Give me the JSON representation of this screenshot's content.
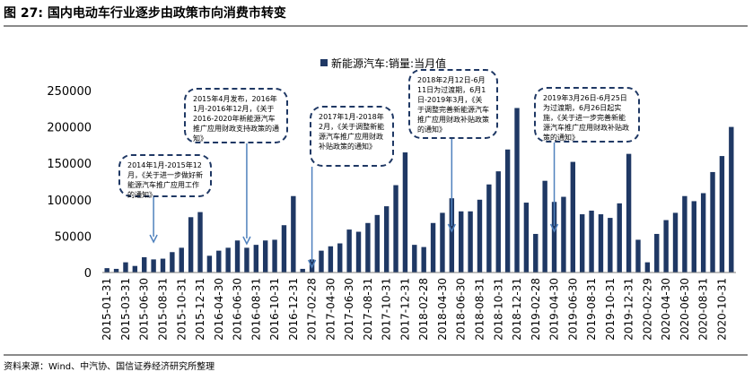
{
  "figure": {
    "title": "图 27: 国内电动车行业逐步由政策市向消费市转变",
    "source": "资料来源：Wind、中汽协、国信证券经济研究所整理"
  },
  "chart_data": {
    "type": "bar",
    "legend": {
      "label": "新能源汽车:销量:当月值",
      "position": "top"
    },
    "ylim": [
      0,
      250000
    ],
    "yticks": [
      "0",
      "50000",
      "100000",
      "150000",
      "200000",
      "250000"
    ],
    "bar_color": "#1f3864",
    "x_tick_labels": [
      "2015-01-31",
      "2015-03-31",
      "2015-06-30",
      "2015-08-31",
      "2015-10-31",
      "2015-12-31",
      "2016-04-30",
      "2016-06-30",
      "2016-08-31",
      "2016-10-31",
      "2016-12-31",
      "2017-02-28",
      "2017-04-30",
      "2017-06-30",
      "2017-08-31",
      "2017-10-31",
      "2017-12-31",
      "2018-02-28",
      "2018-04-30",
      "2018-06-30",
      "2018-08-31",
      "2018-10-31",
      "2018-12-31",
      "2019-02-28",
      "2019-04-30",
      "2019-06-30",
      "2019-08-31",
      "2019-10-31",
      "2019-12-31",
      "2020-02-29",
      "2020-04-30",
      "2020-06-30",
      "2020-08-31",
      "2020-10-31"
    ],
    "values": [
      6000,
      5000,
      14000,
      9000,
      21000,
      18000,
      19000,
      28000,
      34000,
      76000,
      83000,
      23000,
      30000,
      34000,
      44000,
      34000,
      38000,
      44000,
      45000,
      65000,
      105000,
      5000,
      18000,
      30000,
      36000,
      40000,
      59000,
      56000,
      68000,
      79000,
      91000,
      120000,
      165000,
      38000,
      35000,
      68000,
      82000,
      102000,
      84000,
      84000,
      100000,
      121000,
      139000,
      169000,
      226000,
      96000,
      53000,
      126000,
      97000,
      104000,
      152000,
      80000,
      85000,
      80000,
      75000,
      95000,
      163000,
      45000,
      14000,
      53000,
      72000,
      82000,
      105000,
      98000,
      109000,
      138000,
      160000,
      200000
    ]
  },
  "annotations": [
    {
      "text": "2014年1月-2015年12月，《关于进一步做好新能源汽车推广应用工作的通知》"
    },
    {
      "text": "2015年4月发布，2016年1月-2016年12月，《关于2016-2020年新能源汽车推广应用财政支持政策的通知》"
    },
    {
      "text": "2017年1月-2018年2月，《关于调整新能源汽车推广应用财政补贴政策的通知》"
    },
    {
      "text": "2018年2月12日-6月11日为过渡期，6月1日-2019年3月，《关于调整完善新能源汽车推广应用财政补贴政策的通知》"
    },
    {
      "text": "2019年3月26日-6月25日为过渡期，6月26日起实施，《关于进一步完善新能源汽车推广应用财政补贴政策的通知》"
    }
  ]
}
